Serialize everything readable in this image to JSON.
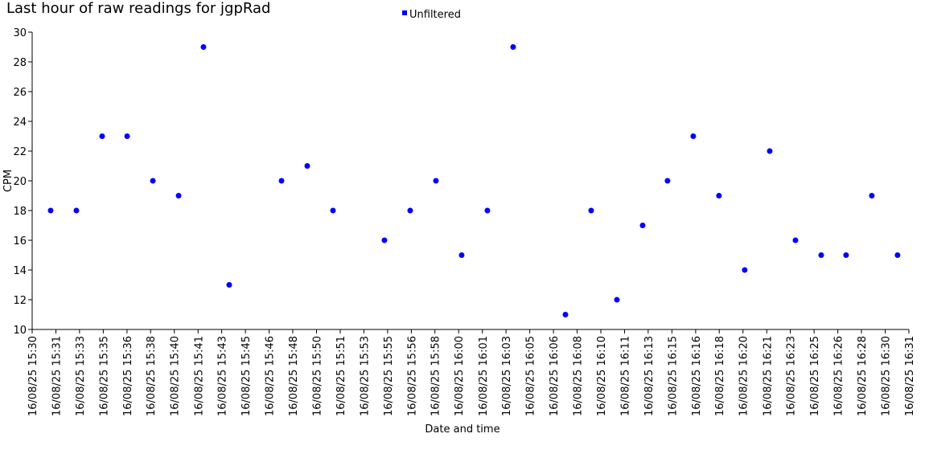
{
  "chart_data": {
    "type": "scatter",
    "title": "Last hour of raw readings for jgpRad",
    "xlabel": "Date and time",
    "ylabel": "CPM",
    "series": [
      {
        "name": "Unfiltered",
        "color": "#0000ff",
        "x": [
          1.3,
          3.11,
          4.92,
          6.68,
          8.49,
          10.3,
          12.05,
          13.86,
          17.54,
          19.35,
          21.16,
          24.78,
          26.59,
          28.4,
          30.21,
          32.02,
          33.83,
          37.51,
          39.32,
          41.13,
          42.94,
          44.69,
          46.5,
          48.31,
          50.12,
          51.88,
          53.69,
          55.5,
          57.25,
          59.06,
          60.87
        ],
        "values": [
          18,
          18,
          23,
          23,
          20,
          19,
          29,
          13,
          20,
          21,
          18,
          16,
          18,
          20,
          15,
          18,
          29,
          11,
          18,
          12,
          17,
          20,
          23,
          19,
          14,
          22,
          16,
          15,
          15,
          19,
          15
        ]
      }
    ],
    "xlim": [
      0,
      61.67
    ],
    "xticks": [
      {
        "value": 0,
        "label": "16/08/25 15:30"
      },
      {
        "value": 1.67,
        "label": "16/08/25 15:31"
      },
      {
        "value": 3.33,
        "label": "16/08/25 15:33"
      },
      {
        "value": 5,
        "label": "16/08/25 15:35"
      },
      {
        "value": 6.67,
        "label": "16/08/25 15:36"
      },
      {
        "value": 8.33,
        "label": "16/08/25 15:38"
      },
      {
        "value": 10,
        "label": "16/08/25 15:40"
      },
      {
        "value": 11.67,
        "label": "16/08/25 15:41"
      },
      {
        "value": 13.33,
        "label": "16/08/25 15:43"
      },
      {
        "value": 15,
        "label": "16/08/25 15:45"
      },
      {
        "value": 16.67,
        "label": "16/08/25 15:46"
      },
      {
        "value": 18.33,
        "label": "16/08/25 15:48"
      },
      {
        "value": 20,
        "label": "16/08/25 15:50"
      },
      {
        "value": 21.67,
        "label": "16/08/25 15:51"
      },
      {
        "value": 23.33,
        "label": "16/08/25 15:53"
      },
      {
        "value": 25,
        "label": "16/08/25 15:55"
      },
      {
        "value": 26.67,
        "label": "16/08/25 15:56"
      },
      {
        "value": 28.33,
        "label": "16/08/25 15:58"
      },
      {
        "value": 30,
        "label": "16/08/25 16:00"
      },
      {
        "value": 31.67,
        "label": "16/08/25 16:01"
      },
      {
        "value": 33.33,
        "label": "16/08/25 16:03"
      },
      {
        "value": 35,
        "label": "16/08/25 16:05"
      },
      {
        "value": 36.67,
        "label": "16/08/25 16:06"
      },
      {
        "value": 38.33,
        "label": "16/08/25 16:08"
      },
      {
        "value": 40,
        "label": "16/08/25 16:10"
      },
      {
        "value": 41.67,
        "label": "16/08/25 16:11"
      },
      {
        "value": 43.33,
        "label": "16/08/25 16:13"
      },
      {
        "value": 45,
        "label": "16/08/25 16:15"
      },
      {
        "value": 46.67,
        "label": "16/08/25 16:16"
      },
      {
        "value": 48.33,
        "label": "16/08/25 16:18"
      },
      {
        "value": 50,
        "label": "16/08/25 16:20"
      },
      {
        "value": 51.67,
        "label": "16/08/25 16:21"
      },
      {
        "value": 53.33,
        "label": "16/08/25 16:23"
      },
      {
        "value": 55,
        "label": "16/08/25 16:25"
      },
      {
        "value": 56.67,
        "label": "16/08/25 16:26"
      },
      {
        "value": 58.33,
        "label": "16/08/25 16:28"
      },
      {
        "value": 60,
        "label": "16/08/25 16:30"
      },
      {
        "value": 61.67,
        "label": "16/08/25 16:31"
      }
    ],
    "ylim": [
      10,
      30
    ],
    "yticks": [
      10,
      12,
      14,
      16,
      18,
      20,
      22,
      24,
      26,
      28,
      30
    ],
    "grid": false
  }
}
